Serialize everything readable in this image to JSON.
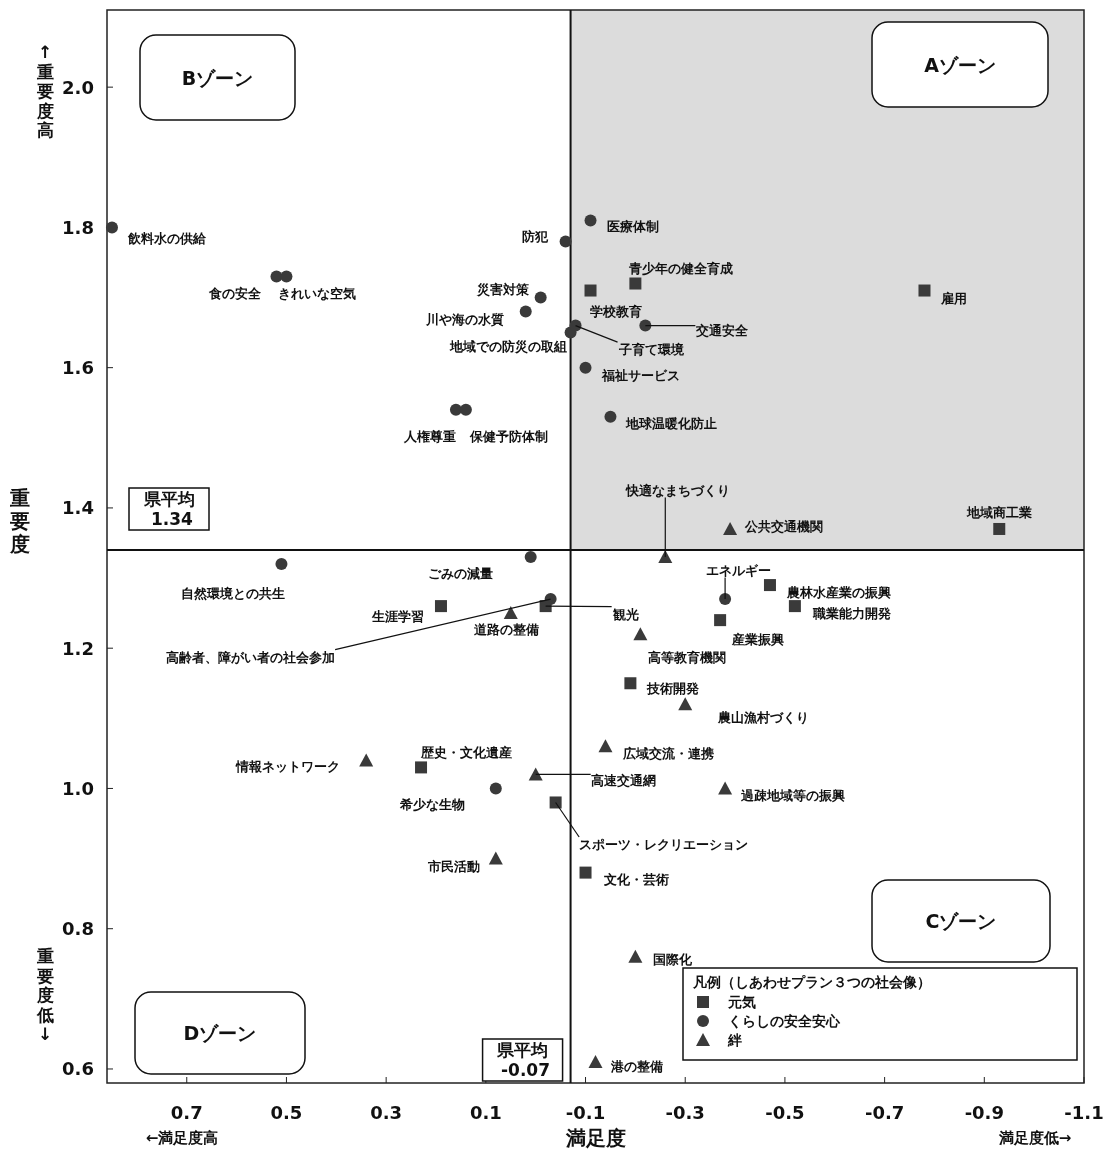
{
  "chart_data": {
    "type": "scatter",
    "xlabel": "満足度",
    "ylabel": "重要度",
    "legend_title": "凡例（しあわせプラン３つの社会像）",
    "legend": "bottom right",
    "xlim": [
      0.86,
      -1.1
    ],
    "ylim": [
      0.58,
      2.11
    ],
    "xticks": [
      0.7,
      0.5,
      0.3,
      0.1,
      -0.1,
      -0.3,
      -0.5,
      -0.7,
      -0.9,
      -1.1
    ],
    "yticks": [
      0.6,
      0.8,
      {
        "value": 1.0,
        "label": "1.0"
      },
      1.2,
      1.4,
      1.6,
      1.8,
      {
        "value": 2.0,
        "label": "2.0"
      }
    ],
    "series": [
      {
        "name": "元気",
        "color": "#3a3a3a",
        "marker": "square",
        "x": [
          -0.11,
          -0.2,
          -0.78,
          -0.93,
          0.19,
          -0.02,
          -0.47,
          -0.52,
          -0.37,
          -0.19,
          0.23,
          -0.04,
          -0.1
        ],
        "values": [
          1.71,
          1.72,
          1.71,
          1.37,
          1.26,
          1.26,
          1.29,
          1.26,
          1.24,
          1.15,
          1.03,
          0.98,
          0.88
        ]
      },
      {
        "name": "くらしの安全安心",
        "color": "#3a3a3a",
        "marker": "circle",
        "x": [
          0.85,
          0.52,
          0.5,
          -0.06,
          -0.01,
          0.02,
          -0.07,
          0.16,
          0.14,
          -0.11,
          -0.08,
          -0.22,
          -0.1,
          -0.15,
          0.51,
          0.01,
          -0.03,
          -0.38,
          0.08
        ],
        "values": [
          1.8,
          1.73,
          1.73,
          1.78,
          1.7,
          1.68,
          1.65,
          1.54,
          1.54,
          1.81,
          1.66,
          1.66,
          1.6,
          1.53,
          1.32,
          1.33,
          1.27,
          1.27,
          1.0
        ]
      },
      {
        "name": "絆",
        "color": "#3a3a3a",
        "marker": "triangle",
        "x": [
          -0.39,
          -0.26,
          0.05,
          -0.21,
          -0.3,
          -0.14,
          0.34,
          0.0,
          0.08,
          -0.38,
          -0.2,
          -0.12
        ],
        "values": [
          1.37,
          1.33,
          1.25,
          1.22,
          1.12,
          1.06,
          1.04,
          1.02,
          0.9,
          1.0,
          0.76,
          0.61
        ]
      }
    ],
    "ref_lines": [
      {
        "axis": "y",
        "value": 1.34,
        "label": "県平均 1.34"
      },
      {
        "axis": "x",
        "value": -0.07,
        "label": "県平均 -0.07"
      }
    ],
    "annotations": [
      "Bゾーン",
      "Aゾーン",
      "Cゾーン",
      "Dゾーン",
      "↑重要度高",
      "重要度低↓",
      "←満足度高",
      "満足度低→",
      {
        "text": "学校教育",
        "x": -0.11,
        "y": 1.71
      },
      {
        "text": "青少年の健全育成",
        "x": -0.2,
        "y": 1.72
      },
      {
        "text": "雇用",
        "x": -0.78,
        "y": 1.71
      },
      {
        "text": "地域商工業",
        "x": -0.93,
        "y": 1.37
      },
      {
        "text": "生涯学習",
        "x": 0.19,
        "y": 1.26
      },
      {
        "text": "観光",
        "x": -0.02,
        "y": 1.26
      },
      {
        "text": "農林水産業の振興",
        "x": -0.47,
        "y": 1.29
      },
      {
        "text": "職業能力開発",
        "x": -0.52,
        "y": 1.26
      },
      {
        "text": "産業振興",
        "x": -0.37,
        "y": 1.24
      },
      {
        "text": "技術開発",
        "x": -0.19,
        "y": 1.15
      },
      {
        "text": "歴史・文化遺産",
        "x": 0.23,
        "y": 1.03
      },
      {
        "text": "スポーツ・レクリエーション",
        "x": -0.04,
        "y": 0.98
      },
      {
        "text": "文化・芸術",
        "x": -0.1,
        "y": 0.88
      },
      {
        "text": "飲料水の供給",
        "x": 0.85,
        "y": 1.8
      },
      {
        "text": "食の安全",
        "x": 0.52,
        "y": 1.73
      },
      {
        "text": "きれいな空気",
        "x": 0.5,
        "y": 1.73
      },
      {
        "text": "防犯",
        "x": -0.06,
        "y": 1.78
      },
      {
        "text": "災害対策",
        "x": -0.01,
        "y": 1.7
      },
      {
        "text": "川や海の水質",
        "x": 0.02,
        "y": 1.68
      },
      {
        "text": "地域での防災の取組",
        "x": -0.07,
        "y": 1.65
      },
      {
        "text": "人権尊重",
        "x": 0.16,
        "y": 1.54
      },
      {
        "text": "保健予防体制",
        "x": 0.14,
        "y": 1.54
      },
      {
        "text": "医療体制",
        "x": -0.11,
        "y": 1.81
      },
      {
        "text": "子育て環境",
        "x": -0.08,
        "y": 1.66
      },
      {
        "text": "交通安全",
        "x": -0.22,
        "y": 1.66
      },
      {
        "text": "福祉サービス",
        "x": -0.1,
        "y": 1.6
      },
      {
        "text": "地球温暖化防止",
        "x": -0.15,
        "y": 1.53
      },
      {
        "text": "自然環境との共生",
        "x": 0.51,
        "y": 1.32
      },
      {
        "text": "ごみの減量",
        "x": 0.01,
        "y": 1.33
      },
      {
        "text": "高齢者、障がい者の社会参加",
        "x": -0.03,
        "y": 1.27
      },
      {
        "text": "エネルギー",
        "x": -0.38,
        "y": 1.27
      },
      {
        "text": "希少な生物",
        "x": 0.08,
        "y": 1.0
      },
      {
        "text": "公共交通機関",
        "x": -0.39,
        "y": 1.37
      },
      {
        "text": "快適なまちづくり",
        "x": -0.26,
        "y": 1.33
      },
      {
        "text": "道路の整備",
        "x": 0.05,
        "y": 1.25
      },
      {
        "text": "高等教育機関",
        "x": -0.21,
        "y": 1.22
      },
      {
        "text": "農山漁村づくり",
        "x": -0.3,
        "y": 1.12
      },
      {
        "text": "広域交流・連携",
        "x": -0.14,
        "y": 1.06
      },
      {
        "text": "情報ネットワーク",
        "x": 0.34,
        "y": 1.04
      },
      {
        "text": "高速交通網",
        "x": 0.0,
        "y": 1.02
      },
      {
        "text": "市民活動",
        "x": 0.08,
        "y": 0.9
      },
      {
        "text": "過疎地域等の振興",
        "x": -0.38,
        "y": 1.0
      },
      {
        "text": "国際化",
        "x": -0.2,
        "y": 0.76
      },
      {
        "text": "港の整備",
        "x": -0.12,
        "y": 0.61
      }
    ]
  }
}
